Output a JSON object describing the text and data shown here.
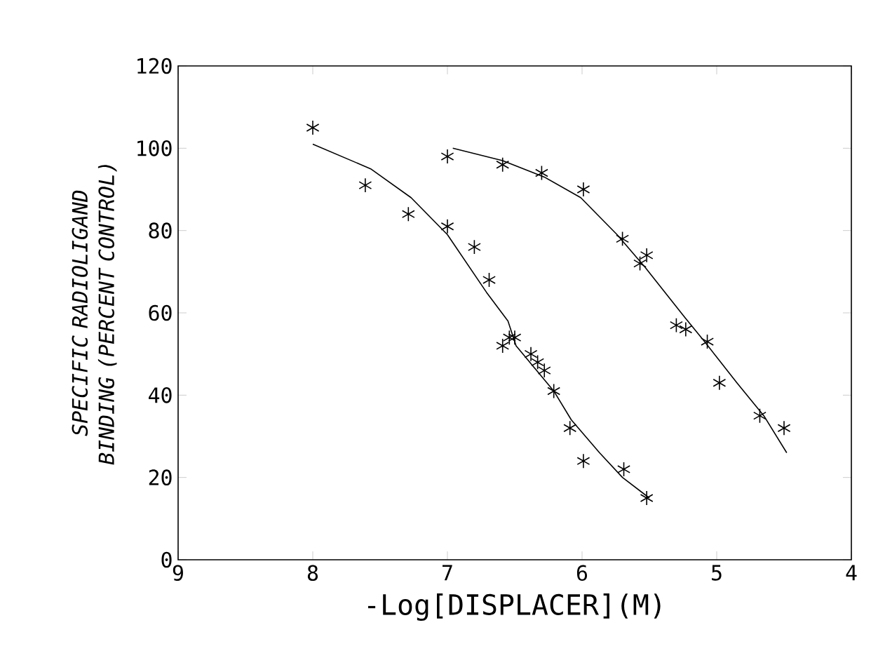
{
  "chart_data": {
    "type": "scatter",
    "xlabel": "-Log[DISPLACER](M)",
    "ylabel": "SPECIFIC RADIOLIGAND BINDING (PERCENT CONTROL)",
    "xlim": [
      9,
      4
    ],
    "xticks": [
      9,
      8,
      7,
      6,
      5,
      4
    ],
    "ylim": [
      0,
      120
    ],
    "yticks": [
      0,
      20,
      40,
      60,
      80,
      100,
      120
    ],
    "grid": false,
    "series": [
      {
        "marker": "cross",
        "color": "#000000",
        "x": [
          8.0,
          7.61,
          7.29,
          7.0,
          6.8,
          6.69,
          6.59,
          6.54,
          6.5,
          6.38,
          6.33,
          6.28,
          6.21,
          6.09,
          5.99,
          5.69,
          5.52
        ],
        "values": [
          105,
          91,
          84,
          81,
          76,
          68,
          52,
          54,
          54,
          50,
          48,
          46,
          41,
          32,
          24,
          22,
          15
        ]
      },
      {
        "type": "line",
        "marker": "none",
        "line_style": "solid",
        "color": "#000000",
        "x": [
          8.0,
          7.57,
          7.27,
          7.0,
          6.71,
          6.55,
          6.49,
          6.21,
          6.08,
          5.87,
          5.7,
          5.5
        ],
        "values": [
          101,
          95,
          88,
          79,
          65,
          58,
          52,
          41,
          34,
          26,
          20,
          15
        ]
      },
      {
        "marker": "cross",
        "color": "#000000",
        "x": [
          7.0,
          6.59,
          6.3,
          5.99,
          5.7,
          5.57,
          5.52,
          5.3,
          5.23,
          5.07,
          4.98,
          4.68,
          4.5
        ],
        "values": [
          98,
          96,
          94,
          90,
          78,
          72,
          74,
          57,
          56,
          53,
          43,
          35,
          32
        ]
      },
      {
        "type": "line",
        "marker": "none",
        "line_style": "solid",
        "color": "#000000",
        "x": [
          6.96,
          6.59,
          6.28,
          6.01,
          5.74,
          5.53,
          5.24,
          5.09,
          4.85,
          4.65,
          4.48
        ],
        "values": [
          100,
          97,
          93,
          88,
          79,
          71,
          59,
          53,
          43,
          35,
          26
        ]
      }
    ]
  }
}
